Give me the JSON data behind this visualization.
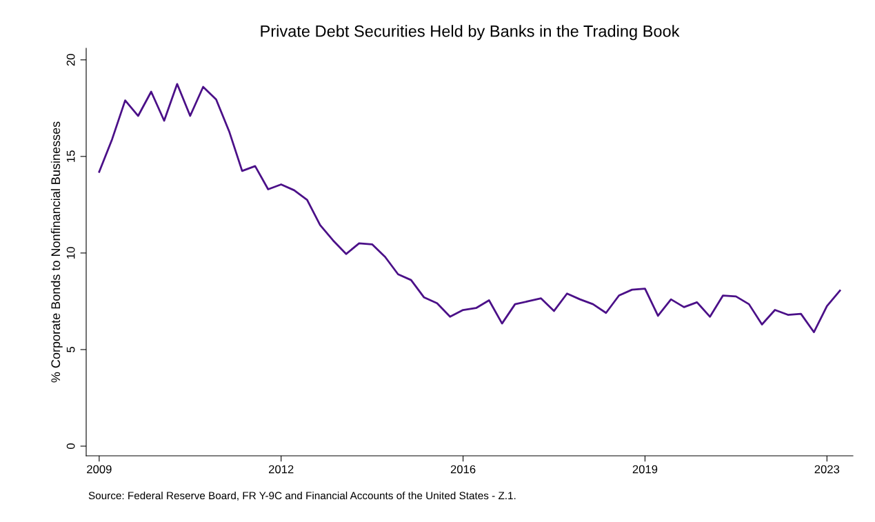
{
  "chart_data": {
    "type": "line",
    "title": "Private Debt Securities Held by Banks in the Trading Book",
    "ylabel": "% Corporate Bonds to Nonfinancial Businesses",
    "annotations": [
      "Source: Federal Reserve Board, FR Y-9C and Financial Accounts of the United States - Z.1."
    ],
    "categories": [
      "2009",
      null,
      null,
      null,
      null,
      null,
      null,
      null,
      null,
      null,
      null,
      null,
      null,
      null,
      "2012",
      null,
      null,
      null,
      null,
      null,
      null,
      null,
      null,
      null,
      null,
      null,
      null,
      null,
      "2016",
      null,
      null,
      null,
      null,
      null,
      null,
      null,
      null,
      null,
      null,
      null,
      null,
      null,
      "2019",
      null,
      null,
      null,
      null,
      null,
      null,
      null,
      null,
      null,
      null,
      null,
      null,
      null,
      "2023",
      null
    ],
    "series": [
      {
        "color": "#4b1088",
        "values": [
          14.2,
          15.9,
          17.9,
          17.1,
          18.35,
          16.85,
          18.75,
          17.1,
          18.6,
          17.95,
          16.3,
          14.25,
          14.5,
          13.3,
          13.55,
          13.25,
          12.75,
          11.45,
          10.65,
          9.95,
          10.5,
          10.45,
          9.8,
          8.9,
          8.6,
          7.7,
          7.4,
          6.7,
          7.05,
          7.15,
          7.55,
          6.35,
          7.35,
          7.5,
          7.65,
          7.0,
          7.9,
          7.6,
          7.35,
          6.9,
          7.8,
          8.1,
          8.15,
          6.75,
          7.6,
          7.2,
          7.45,
          6.7,
          7.8,
          7.75,
          7.35,
          6.3,
          7.05,
          6.8,
          6.85,
          5.9,
          7.25,
          8.05
        ]
      }
    ],
    "ylim": [
      -0.5,
      20.6
    ],
    "yticks": [
      0,
      5,
      10,
      15,
      20
    ],
    "grid": false,
    "legend": false,
    "marker": "none",
    "line_style": "solid"
  }
}
